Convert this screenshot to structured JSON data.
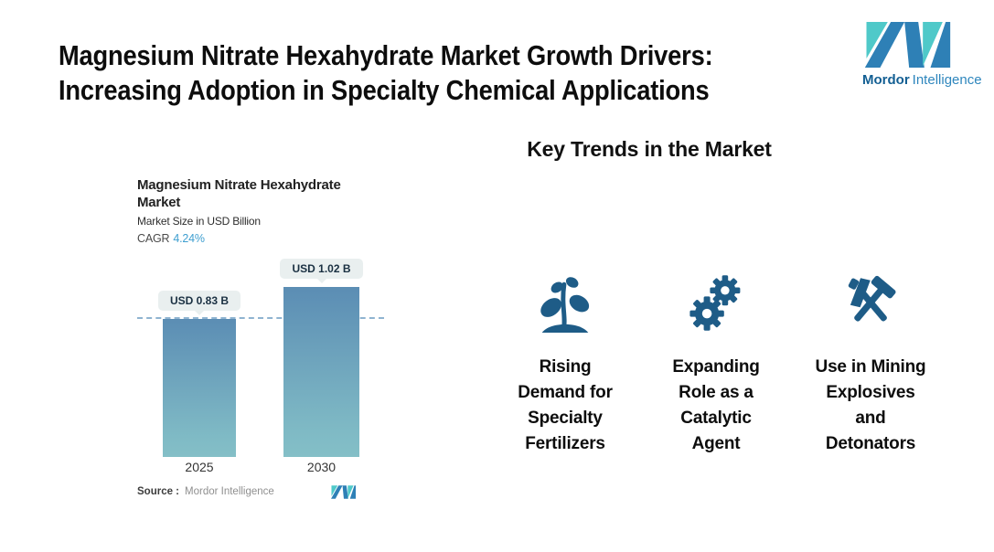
{
  "header": {
    "title": "Magnesium Nitrate Hexahydrate Market Growth Drivers:\nIncreasing Adoption in Specialty Chemical Applications",
    "logo": {
      "brand_bold": "Mordor",
      "brand_regular": "Intelligence"
    }
  },
  "chart": {
    "title": "Magnesium Nitrate Hexahydrate\nMarket",
    "subtitle": "Market Size in USD Billion",
    "cagr_label": "CAGR",
    "cagr_value": "4.24%",
    "source_label": "Source :",
    "source_value": "Mordor Intelligence"
  },
  "chart_data": {
    "type": "bar",
    "title": "Magnesium Nitrate Hexahydrate Market",
    "ylabel": "Market Size in USD Billion",
    "cagr": "4.24%",
    "categories": [
      "2025",
      "2030"
    ],
    "values": [
      0.83,
      1.02
    ],
    "value_labels": [
      "USD 0.83 B",
      "USD 1.02 B"
    ],
    "ylim": [
      0,
      1.02
    ],
    "grid": false,
    "legend": "none",
    "baseline_marker": "dashed line at 2025 value (0.83)"
  },
  "trends": {
    "heading": "Key Trends in the Market",
    "items": [
      {
        "icon": "seedling-icon",
        "label": "Rising\nDemand for\nSpecialty\nFertilizers"
      },
      {
        "icon": "gears-icon",
        "label": "Expanding\nRole as a\nCatalytic\nAgent"
      },
      {
        "icon": "crossed-hammers-icon",
        "label": "Use in Mining\nExplosives\nand\nDetonators"
      }
    ]
  },
  "colors": {
    "icon_blue": "#1e5c87",
    "bar_gradient_top": "#5b8db4",
    "bar_gradient_bottom": "#7fbac5",
    "dashed_line": "#8fb4d1",
    "badge_bg": "#e9efef",
    "badge_text": "#1a3042",
    "logo_teal": "#4fc9c9",
    "logo_blue": "#2e80b6",
    "cagr_value_blue": "#3f9fd0"
  }
}
